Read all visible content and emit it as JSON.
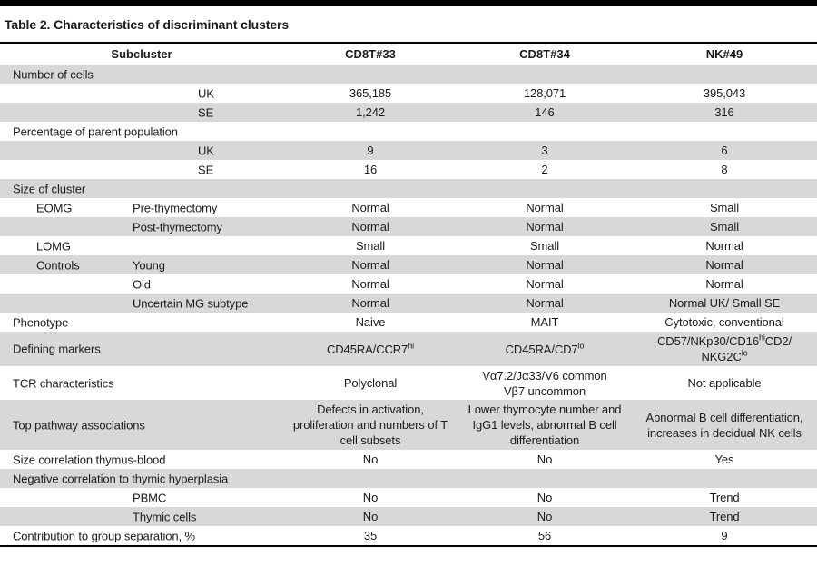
{
  "title": "Table 2. Characteristics of discriminant clusters",
  "table": {
    "columns": [
      "Subcluster",
      "CD8T#33",
      "CD8T#34",
      "NK#49"
    ],
    "rows": [
      {
        "labels": [
          {
            "text": "Number of cells",
            "indent": 0
          }
        ],
        "cells": [
          "",
          "",
          ""
        ]
      },
      {
        "labels": [
          {
            "text": "UK",
            "indent": 3
          }
        ],
        "cells": [
          "365,185",
          "128,071",
          "395,043"
        ]
      },
      {
        "labels": [
          {
            "text": "SE",
            "indent": 3
          }
        ],
        "cells": [
          "1,242",
          "146",
          "316"
        ]
      },
      {
        "labels": [
          {
            "text": "Percentage of parent population",
            "indent": 0
          }
        ],
        "cells": [
          "",
          "",
          ""
        ]
      },
      {
        "labels": [
          {
            "text": "UK",
            "indent": 3
          }
        ],
        "cells": [
          "9",
          "3",
          "6"
        ]
      },
      {
        "labels": [
          {
            "text": "SE",
            "indent": 3
          }
        ],
        "cells": [
          "16",
          "2",
          "8"
        ]
      },
      {
        "labels": [
          {
            "text": "Size of cluster",
            "indent": 0
          }
        ],
        "cells": [
          "",
          "",
          ""
        ]
      },
      {
        "labels": [
          {
            "text": "EOMG",
            "indent": 1
          },
          {
            "text": "Pre-thymectomy",
            "indent": 2
          }
        ],
        "cells": [
          "Normal",
          "Normal",
          "Small"
        ]
      },
      {
        "labels": [
          {
            "text": "Post-thymectomy",
            "indent": 2
          }
        ],
        "cells": [
          "Normal",
          "Normal",
          "Small"
        ]
      },
      {
        "labels": [
          {
            "text": "LOMG",
            "indent": 1
          }
        ],
        "cells": [
          "Small",
          "Small",
          "Normal"
        ]
      },
      {
        "labels": [
          {
            "text": "Controls",
            "indent": 1
          },
          {
            "text": "Young",
            "indent": 2
          }
        ],
        "cells": [
          "Normal",
          "Normal",
          "Normal"
        ]
      },
      {
        "labels": [
          {
            "text": "Old",
            "indent": 2
          }
        ],
        "cells": [
          "Normal",
          "Normal",
          "Normal"
        ]
      },
      {
        "labels": [
          {
            "text": "Uncertain MG subtype",
            "indent": 2
          }
        ],
        "cells": [
          "Normal",
          "Normal",
          "Normal UK/ Small SE"
        ]
      },
      {
        "labels": [
          {
            "text": "Phenotype",
            "indent": 0
          }
        ],
        "cells": [
          "Naive",
          "MAIT",
          "Cytotoxic, conventional"
        ]
      },
      {
        "labels": [
          {
            "text": "Defining markers",
            "indent": 0
          }
        ],
        "cells": [
          [
            "CD45RA/CCR7",
            {
              "sup": "hi"
            }
          ],
          [
            "CD45RA/CD7",
            {
              "sup": "lo"
            }
          ],
          [
            "CD57/NKp30/CD16",
            {
              "sup": "hi"
            },
            "CD2/",
            {
              "br": true
            },
            "NKG2C",
            {
              "sup": "lo"
            }
          ]
        ]
      },
      {
        "labels": [
          {
            "text": "TCR characteristics",
            "indent": 0
          }
        ],
        "cells": [
          "Polyclonal",
          [
            "Vα7.2/Jα33/V6 common",
            {
              "br": true
            },
            "Vβ7 uncommon"
          ],
          "Not applicable"
        ]
      },
      {
        "labels": [
          {
            "text": "Top pathway associations",
            "indent": 0
          }
        ],
        "cells": [
          "Defects in activation, proliferation and numbers of T cell subsets",
          "Lower thymocyte number and IgG1 levels, abnormal B cell differentiation",
          "Abnormal B cell differentiation, increases in decidual NK cells"
        ]
      },
      {
        "labels": [
          {
            "text": "Size correlation thymus-blood",
            "indent": 0
          }
        ],
        "cells": [
          "No",
          "No",
          "Yes"
        ]
      },
      {
        "labels": [
          {
            "text": "Negative correlation to thymic hyperplasia",
            "indent": 0
          }
        ],
        "cells": [
          "",
          "",
          ""
        ]
      },
      {
        "labels": [
          {
            "text": "PBMC",
            "indent": 2
          }
        ],
        "cells": [
          "No",
          "No",
          "Trend"
        ]
      },
      {
        "labels": [
          {
            "text": "Thymic cells",
            "indent": 2
          }
        ],
        "cells": [
          "No",
          "No",
          "Trend"
        ]
      },
      {
        "labels": [
          {
            "text": "Contribution to group separation, %",
            "indent": 0
          }
        ],
        "cells": [
          "35",
          "56",
          "9"
        ]
      }
    ]
  },
  "colors": {
    "row_alt": "#d8d8d8",
    "rule": "#000000",
    "text": "#1b1b1b"
  }
}
